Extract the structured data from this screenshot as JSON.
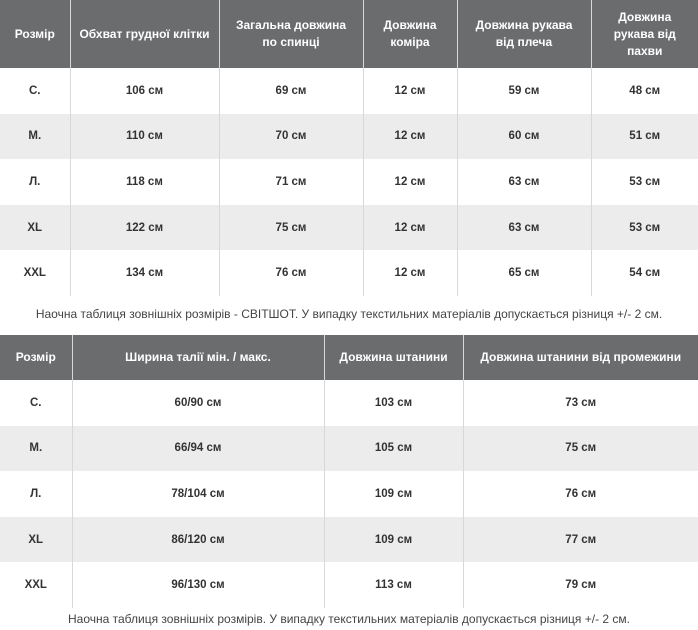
{
  "tables": [
    {
      "header": [
        "Розмір",
        "Обхват грудної клітки",
        "Загальна довжина по спинці",
        "Довжина коміра",
        "Довжина рукава від плеча",
        "Довжина рукава від пахви"
      ],
      "rows": [
        [
          "С.",
          "106 см",
          "69 см",
          "12 см",
          "59 см",
          "48 см"
        ],
        [
          "М.",
          "110 см",
          "70 см",
          "12 см",
          "60 см",
          "51 см"
        ],
        [
          "Л.",
          "118 см",
          "71 см",
          "12 см",
          "63 см",
          "53 см"
        ],
        [
          "XL",
          "122 см",
          "75 см",
          "12 см",
          "63 см",
          "53 см"
        ],
        [
          "XXL",
          "134 см",
          "76 см",
          "12 см",
          "65 см",
          "54 см"
        ]
      ],
      "caption": "Наочна таблиця зовнішніх розмірів - СВІТШОТ. У випадку текстильних матеріалів допускається різниця +/- 2 см."
    },
    {
      "header": [
        "Розмір",
        "Ширина талії мін. / макс.",
        "Довжина штанини",
        "Довжина штанини від промежини"
      ],
      "rows": [
        [
          "С.",
          "60/90 см",
          "103 см",
          "73 см"
        ],
        [
          "М.",
          "66/94 см",
          "105 см",
          "75 см"
        ],
        [
          "Л.",
          "78/104 см",
          "109 см",
          "76 см"
        ],
        [
          "XL",
          "86/120 см",
          "109 см",
          "77 см"
        ],
        [
          "XXL",
          "96/130 см",
          "113 см",
          "79 см"
        ]
      ],
      "caption": "Наочна таблиця зовнішніх розмірів. У випадку текстильних матеріалів допускається різниця +/- 2 см."
    }
  ]
}
